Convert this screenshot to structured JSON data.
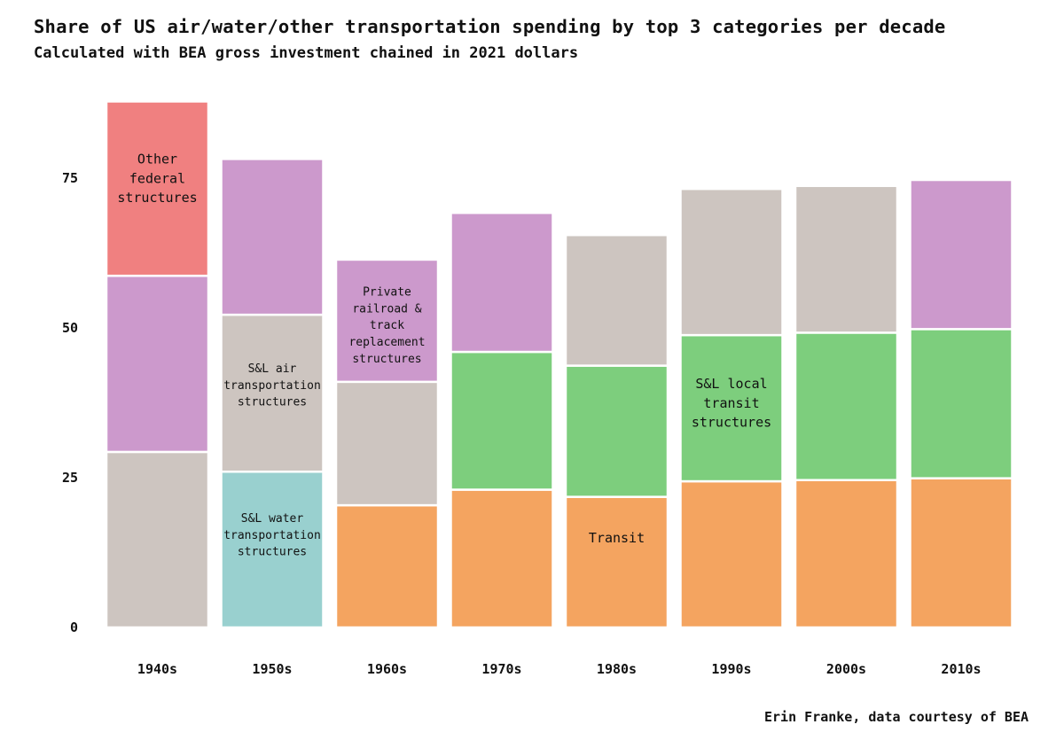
{
  "title": "Share of US air/water/other transportation spending by top 3 categories per decade",
  "subtitle": "Calculated with BEA gross investment chained in 2021 dollars",
  "credit": "Erin Franke, data courtesy of BEA",
  "colors": {
    "S&L air transportation structures": "#cdc5c0",
    "Other federal structures": "#f08080",
    "Private railroad & track replacement structures": "#cc99cc",
    "S&L water transportation structures": "#99d0cf",
    "Transit": "#f4a460",
    "S&L local transit structures": "#7dce7d"
  },
  "annotations": [
    {
      "lines": [
        "Other",
        "federal",
        "structures"
      ],
      "category": "1940s",
      "y": 75,
      "size": 15
    },
    {
      "lines": [
        "Private",
        "railroad &",
        "track",
        "replacement",
        "structures"
      ],
      "category": "1960s",
      "y": 50.5,
      "size": 13
    },
    {
      "lines": [
        "S&L air",
        "transportation",
        "structures"
      ],
      "category": "1950s",
      "y": 40.5,
      "size": 13
    },
    {
      "lines": [
        "S&L water",
        "transportation",
        "structures"
      ],
      "category": "1950s",
      "y": 15.5,
      "size": 13
    },
    {
      "lines": [
        "S&L local",
        "transit",
        "structures"
      ],
      "category": "1990s",
      "y": 37.5,
      "size": 15
    },
    {
      "lines": [
        "Transit"
      ],
      "category": "1980s",
      "y": 15,
      "size": 15
    }
  ],
  "chart_data": {
    "type": "bar",
    "stacked": true,
    "categories": [
      "1940s",
      "1950s",
      "1960s",
      "1970s",
      "1980s",
      "1990s",
      "2000s",
      "2010s"
    ],
    "ylim": [
      0,
      88
    ],
    "yticks": [
      0,
      25,
      50,
      75
    ],
    "grid": false,
    "legend": "none",
    "stacks": [
      [
        {
          "series": "S&L air transportation structures",
          "value": 29.3
        },
        {
          "series": "Private railroad & track replacement structures",
          "value": 29.4
        },
        {
          "series": "Other federal structures",
          "value": 29.1
        }
      ],
      [
        {
          "series": "S&L water transportation structures",
          "value": 26.0
        },
        {
          "series": "S&L air transportation structures",
          "value": 26.2
        },
        {
          "series": "Private railroad & track replacement structures",
          "value": 26.0
        }
      ],
      [
        {
          "series": "Transit",
          "value": 20.4
        },
        {
          "series": "S&L air transportation structures",
          "value": 20.6
        },
        {
          "series": "Private railroad & track replacement structures",
          "value": 20.4
        }
      ],
      [
        {
          "series": "Transit",
          "value": 23.0
        },
        {
          "series": "S&L local transit structures",
          "value": 23.0
        },
        {
          "series": "Private railroad & track replacement structures",
          "value": 23.2
        }
      ],
      [
        {
          "series": "Transit",
          "value": 21.8
        },
        {
          "series": "S&L local transit structures",
          "value": 21.9
        },
        {
          "series": "S&L air transportation structures",
          "value": 21.8
        }
      ],
      [
        {
          "series": "Transit",
          "value": 24.4
        },
        {
          "series": "S&L local transit structures",
          "value": 24.4
        },
        {
          "series": "S&L air transportation structures",
          "value": 24.4
        }
      ],
      [
        {
          "series": "Transit",
          "value": 24.6
        },
        {
          "series": "S&L local transit structures",
          "value": 24.6
        },
        {
          "series": "S&L air transportation structures",
          "value": 24.5
        }
      ],
      [
        {
          "series": "Transit",
          "value": 24.9
        },
        {
          "series": "S&L local transit structures",
          "value": 24.9
        },
        {
          "series": "Private railroad & track replacement structures",
          "value": 24.9
        }
      ]
    ]
  }
}
